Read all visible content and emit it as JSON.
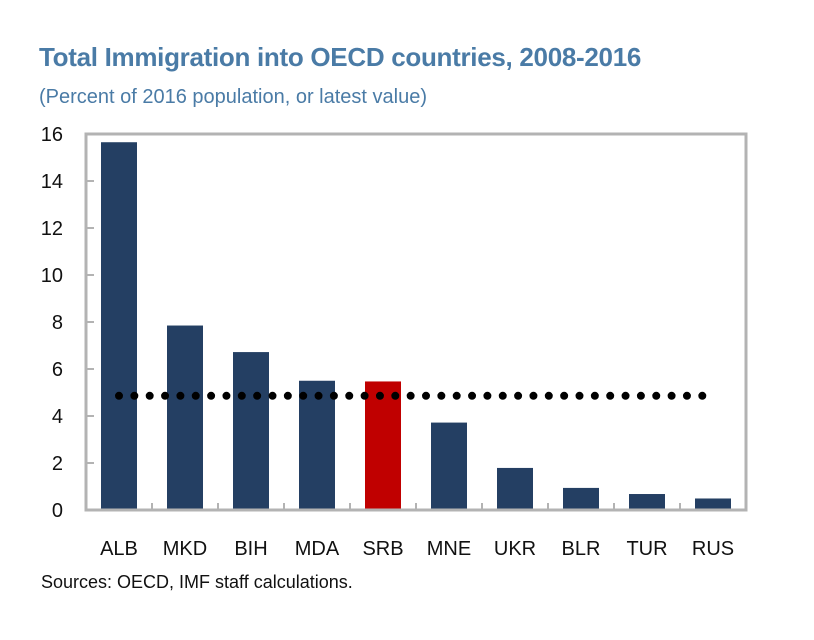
{
  "chart_data": {
    "type": "bar",
    "title": "Total Immigration into OECD countries, 2008-2016",
    "subtitle": "(Percent of 2016 population, or latest value)",
    "xlabel": "",
    "ylabel": "",
    "ylim": [
      0,
      16
    ],
    "yticks": [
      0,
      2,
      4,
      6,
      8,
      10,
      12,
      14,
      16
    ],
    "grid": false,
    "categories": [
      "ALB",
      "MKD",
      "BIH",
      "MDA",
      "SRB",
      "MNE",
      "UKR",
      "BLR",
      "TUR",
      "RUS"
    ],
    "values": [
      15.65,
      7.85,
      6.72,
      5.5,
      5.47,
      3.72,
      1.79,
      0.94,
      0.68,
      0.49
    ],
    "highlight": "SRB",
    "reference_line": {
      "style": "dotted",
      "value": 4.86
    },
    "source": "Sources: OECD, IMF staff calculations."
  },
  "colors": {
    "title": "#4a7ba6",
    "bar": "#243f63",
    "highlight_bar": "#c00000",
    "axis": "#b3b3b3",
    "reference_line": "#000000"
  }
}
